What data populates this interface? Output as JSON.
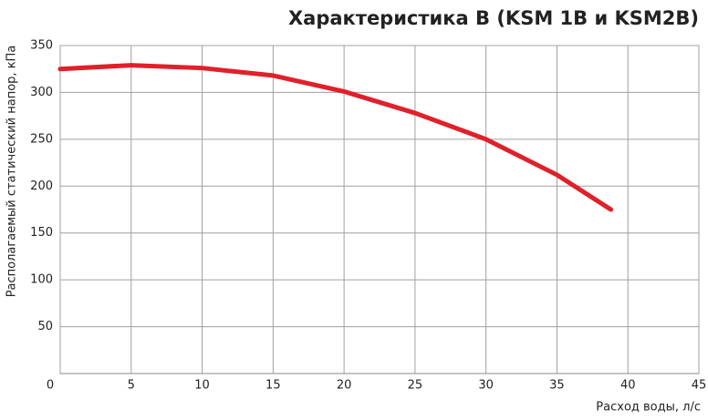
{
  "chart_data": {
    "type": "line",
    "title": "Характеристика B (KSM 1B и KSM2B)",
    "x_label": "Расход воды, л/с",
    "y_label": "Располагаемый статический напор, кПа",
    "x": [
      0,
      5,
      10,
      15,
      20,
      25,
      30,
      35,
      38.8
    ],
    "series": [
      {
        "name": "KSM 1B и KSM2B",
        "color": "#e0202a",
        "values": [
          325,
          329,
          326,
          318,
          301,
          278,
          250,
          212,
          175
        ]
      }
    ],
    "xlim": [
      0,
      45
    ],
    "xticks": [
      0,
      5,
      10,
      15,
      20,
      25,
      30,
      35,
      40,
      45
    ],
    "ylim": [
      0,
      350
    ],
    "yticks": [
      50,
      100,
      150,
      200,
      250,
      300,
      350
    ],
    "grid": true
  }
}
